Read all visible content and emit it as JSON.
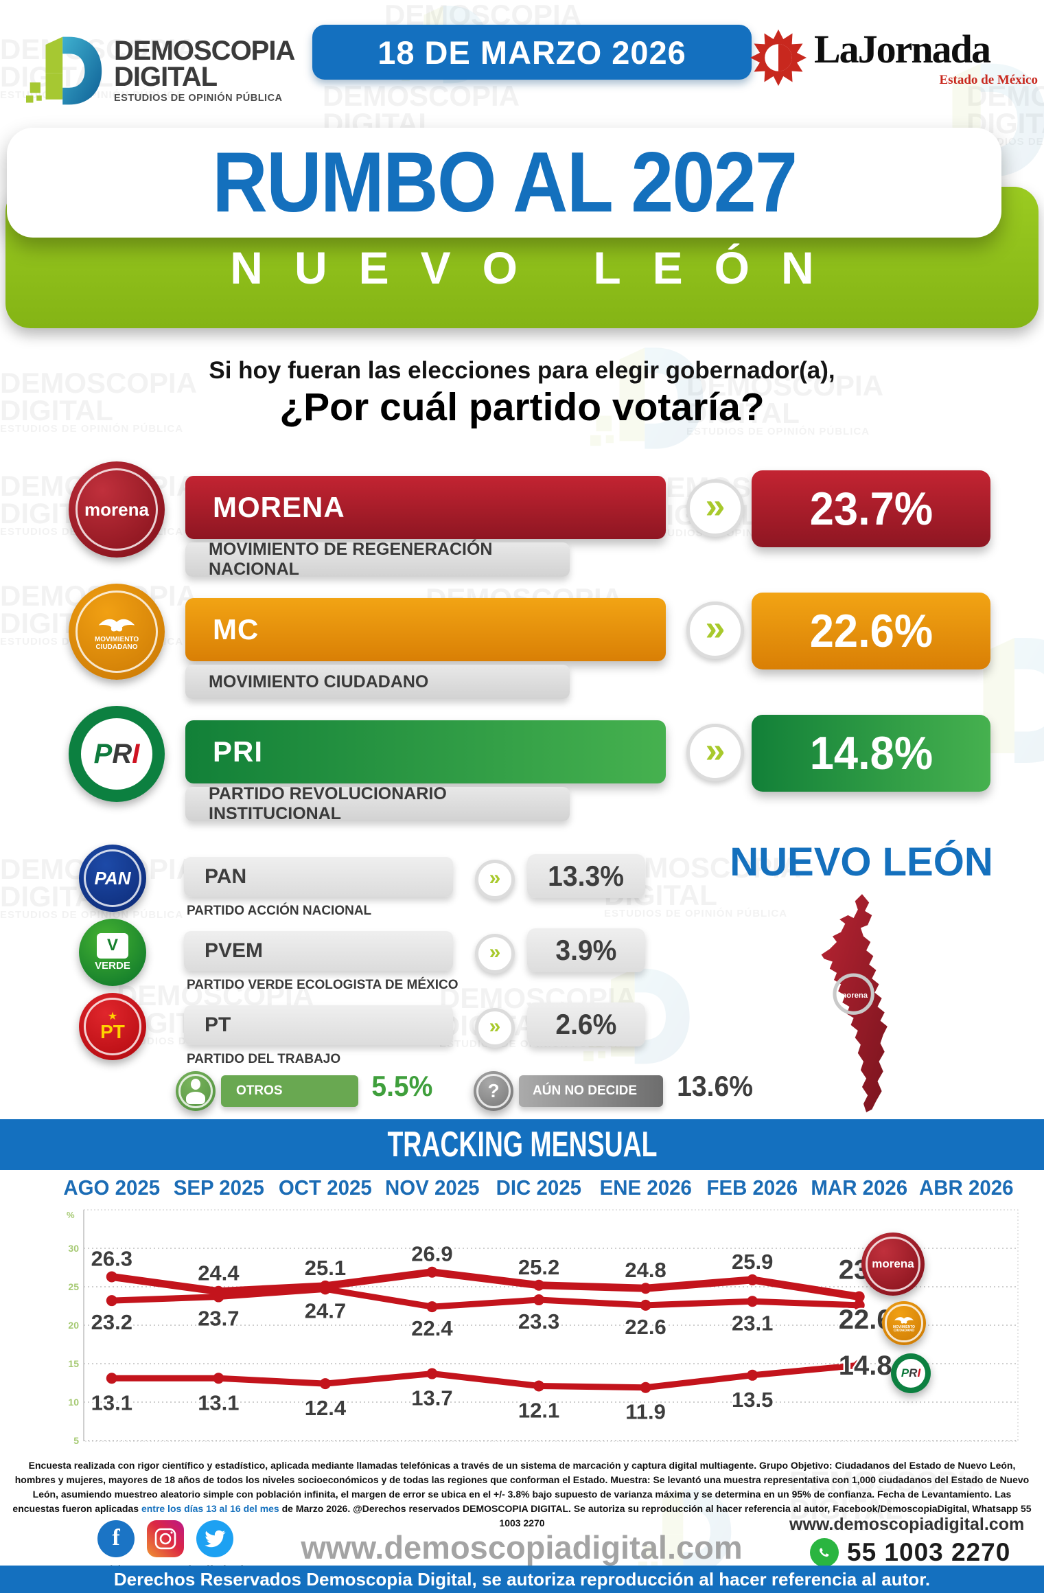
{
  "header": {
    "brand": {
      "name": "DEMOSCOPIA",
      "name2": "DIGITAL",
      "tagline": "ESTUDIOS DE OPINIÓN PÚBLICA"
    },
    "date_badge": "18 DE MARZO 2026",
    "partner": {
      "name": "LaJornada",
      "region": "Estado de México"
    }
  },
  "title": {
    "main": "RUMBO AL 2027",
    "state": "NUEVO LEÓN"
  },
  "question": {
    "line1": "Si hoy fueran las elecciones para elegir gobernador(a),",
    "line2": "¿Por cuál partido votaría?"
  },
  "results": {
    "major": [
      {
        "party": "MORENA",
        "full_name": "MOVIMIENTO DE REGENERACIÓN NACIONAL",
        "value": "23.7%",
        "color_start": "#c32432",
        "color_end": "#8e1622"
      },
      {
        "party": "MC",
        "full_name": "MOVIMIENTO CIUDADANO",
        "value": "22.6%",
        "color_start": "#f2a414",
        "color_end": "#d97f05"
      },
      {
        "party": "PRI",
        "full_name": "PARTIDO REVOLUCIONARIO INSTITUCIONAL",
        "value": "14.8%",
        "color_start": "#128038",
        "color_end": "#46b14f"
      }
    ],
    "minor": [
      {
        "party": "PAN",
        "full_name": "PARTIDO ACCIÓN NACIONAL",
        "value": "13.3%"
      },
      {
        "party": "PVEM",
        "full_name": "PARTIDO VERDE ECOLOGISTA DE MÉXICO",
        "value": "3.9%"
      },
      {
        "party": "PT",
        "full_name": "PARTIDO DEL TRABAJO",
        "value": "2.6%"
      }
    ],
    "others": {
      "label": "OTROS",
      "value": "5.5%"
    },
    "undecided": {
      "label": "AÚN NO DECIDE",
      "value": "13.6%"
    }
  },
  "map": {
    "title": "NUEVO LEÓN",
    "marker_label": "morena"
  },
  "logos": {
    "morena": "morena",
    "mc_line1": "MOVIMIENTO",
    "mc_line2": "CIUDADANO",
    "pri_p": "P",
    "pri_r": "R",
    "pri_i": "I",
    "pan": "PAN",
    "pvem_v": "V",
    "pvem_band": "VERDE",
    "pt": "PT"
  },
  "icons": {
    "chevron": "»",
    "question_mark": "?",
    "star": "★"
  },
  "chart_data": {
    "type": "line",
    "title": "TRACKING MENSUAL",
    "categories": [
      "AGO 2025",
      "SEP 2025",
      "OCT 2025",
      "NOV 2025",
      "DIC 2025",
      "ENE 2026",
      "FEB 2026",
      "MAR 2026",
      "ABR 2026"
    ],
    "series": [
      {
        "name": "MORENA",
        "values": [
          26.3,
          24.4,
          25.1,
          26.9,
          25.2,
          24.8,
          25.9,
          23.7
        ]
      },
      {
        "name": "MC",
        "values": [
          23.2,
          23.7,
          24.7,
          22.4,
          23.3,
          22.6,
          23.1,
          22.6
        ]
      },
      {
        "name": "PRI",
        "values": [
          13.1,
          13.1,
          12.4,
          13.7,
          12.1,
          11.9,
          13.5,
          14.8
        ]
      }
    ],
    "ylim": [
      5,
      30
    ],
    "yticks": [
      30,
      25,
      20,
      15,
      10,
      5
    ],
    "unit": "%",
    "grid": true,
    "line_color": "#c3141c",
    "legend_position": "right-end-badges"
  },
  "fine_print": {
    "segments": [
      {
        "text": "Encuesta realizada con rigor científico y estadístico, aplicada mediante llamadas telefónicas a través de un sistema de marcación y captura digital multiagente. Grupo Objetivo: Ciudadanos del Estado de Nuevo León, hombres y mujeres, mayores de 18 años de todos los niveles socioeconómicos y de todas las regiones que conforman el Estado. Muestra: Se levantó una muestra representativa con 1,000 ciudadanos del Estado de Nuevo León, asumiendo muestreo aleatorio simple con población infinita, el margen de error se ubica en el +/- 3.8% bajo supuesto de varianza máxima y se determina en un 95% de confianza. Fecha de Levantamiento. Las encuestas fueron aplicadas ",
        "color": "#111111"
      },
      {
        "text": "entre los días 13 al 16 del mes",
        "color": "#1470bd"
      },
      {
        "text": " de Marzo 2026. @Derechos reservados DEMOSCOPIA DIGITAL. Se autoriza su reproducción al hacer referencia al autor, Facebook/DemoscopiaDigital, Whatsapp 55 1003 2270",
        "color": "#111111"
      }
    ]
  },
  "footer": {
    "social_handle": "/demoscopiadigital",
    "watermark_url": "www.demoscopiadigital.com",
    "website": "www.demoscopiadigital.com",
    "phone": "55 1003 2270",
    "phone_label": "WhatsApp",
    "rights": "Derechos Reservados Demoscopia Digital, se autoriza reproducción al hacer referencia al autor."
  },
  "watermark": {
    "line1": "DEMOSCOPIA",
    "line2": "DIGITAL",
    "line3": "ESTUDIOS DE OPINIÓN PÚBLICA"
  }
}
